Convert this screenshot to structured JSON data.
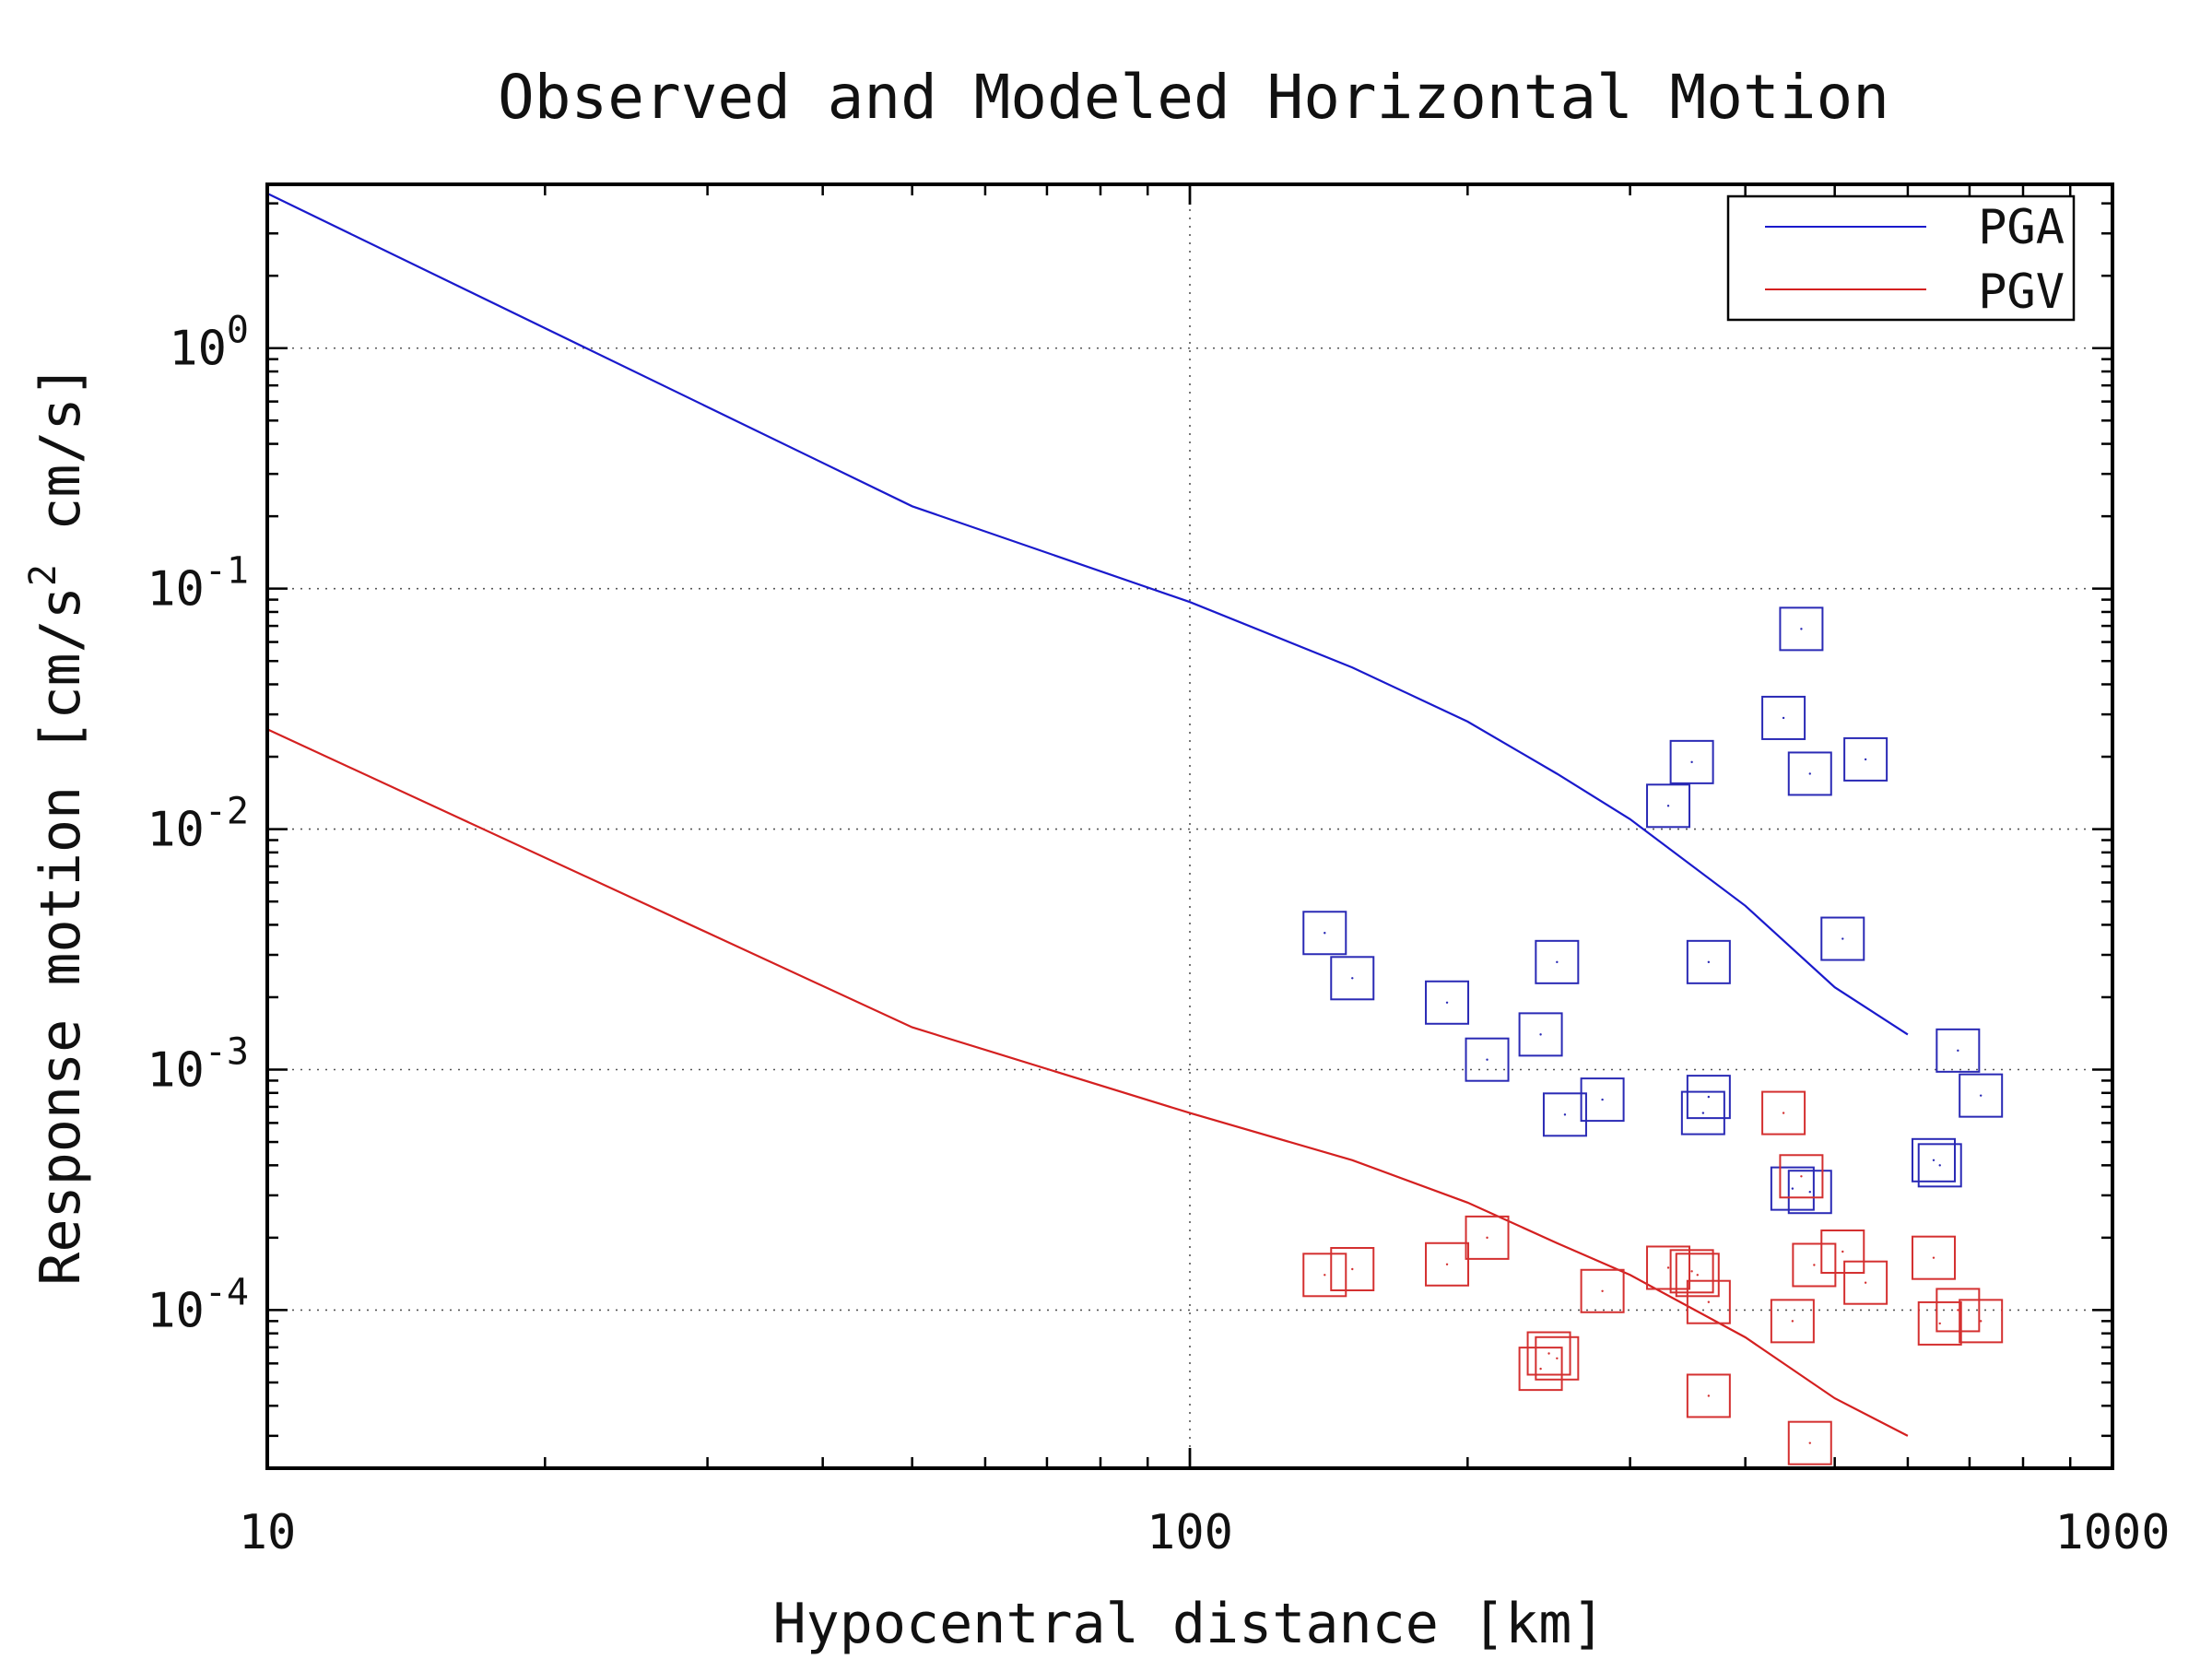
{
  "chart_data": {
    "type": "line",
    "title": "Observed and Modeled Horizontal Motion",
    "xlabel": "Hypocentral distance [km]",
    "ylabel": {
      "part1": "Response motion  [cm/s",
      "sup": "2",
      "part2": "  cm/s]"
    },
    "xscale": "log",
    "yscale": "log",
    "xlim": [
      10,
      1000
    ],
    "ylim": [
      2.2e-05,
      4.8
    ],
    "grid": true,
    "legend_position": "top-right",
    "x_ticks": [
      {
        "value": 10,
        "label": "10"
      },
      {
        "value": 100,
        "label": "100"
      },
      {
        "value": 1000,
        "label": "1000"
      }
    ],
    "y_ticks": [
      {
        "value": 1,
        "base": "10",
        "exp": "0"
      },
      {
        "value": 0.1,
        "base": "10",
        "exp": "-1"
      },
      {
        "value": 0.01,
        "base": "10",
        "exp": "-2"
      },
      {
        "value": 0.001,
        "base": "10",
        "exp": "-3"
      },
      {
        "value": 0.0001,
        "base": "10",
        "exp": "-4"
      }
    ],
    "series": [
      {
        "name": "PGA",
        "color": "#1a1acc",
        "x": [
          10,
          50,
          100,
          150,
          200,
          250,
          300,
          400,
          500,
          600
        ],
        "y": [
          4.4,
          0.22,
          0.088,
          0.047,
          0.028,
          0.017,
          0.011,
          0.0048,
          0.0022,
          0.0014
        ]
      },
      {
        "name": "PGV",
        "color": "#d42020",
        "x": [
          10,
          50,
          100,
          150,
          200,
          250,
          300,
          400,
          500,
          600
        ],
        "y": [
          0.026,
          0.0015,
          0.00066,
          0.00042,
          0.00028,
          0.00019,
          0.00014,
          7.7e-05,
          4.3e-05,
          3e-05
        ]
      }
    ],
    "observations": [
      {
        "series": "PGA",
        "color": "#2a2ab5",
        "points": [
          [
            140,
            0.0037
          ],
          [
            150,
            0.0024
          ],
          [
            190,
            0.0019
          ],
          [
            210,
            0.0011
          ],
          [
            240,
            0.0014
          ],
          [
            250,
            0.0028
          ],
          [
            255,
            0.00065
          ],
          [
            280,
            0.00075
          ],
          [
            330,
            0.0125
          ],
          [
            350,
            0.019
          ],
          [
            360,
            0.00066
          ],
          [
            365,
            0.0028
          ],
          [
            365,
            0.00077
          ],
          [
            440,
            0.029
          ],
          [
            450,
            0.00032
          ],
          [
            460,
            0.068
          ],
          [
            470,
            0.00031
          ],
          [
            470,
            0.017
          ],
          [
            510,
            0.0035
          ],
          [
            540,
            0.0195
          ],
          [
            640,
            0.00042
          ],
          [
            650,
            0.0004
          ],
          [
            680,
            0.0012
          ],
          [
            720,
            0.00078
          ]
        ]
      },
      {
        "series": "PGV",
        "color": "#d43030",
        "points": [
          [
            140,
            0.00014
          ],
          [
            150,
            0.000148
          ],
          [
            190,
            0.000155
          ],
          [
            210,
            0.0002
          ],
          [
            240,
            5.7e-05
          ],
          [
            245,
            6.6e-05
          ],
          [
            250,
            6.3e-05
          ],
          [
            280,
            0.00012
          ],
          [
            330,
            0.00015
          ],
          [
            350,
            0.000145
          ],
          [
            355,
            0.00014
          ],
          [
            365,
            0.000108
          ],
          [
            365,
            4.4e-05
          ],
          [
            440,
            0.00066
          ],
          [
            450,
            9e-05
          ],
          [
            460,
            0.00036
          ],
          [
            470,
            2.8e-05
          ],
          [
            475,
            0.000154
          ],
          [
            510,
            0.000175
          ],
          [
            540,
            0.00013
          ],
          [
            640,
            0.000165
          ],
          [
            650,
            8.8e-05
          ],
          [
            680,
            0.0001
          ],
          [
            720,
            9e-05
          ]
        ]
      }
    ]
  }
}
